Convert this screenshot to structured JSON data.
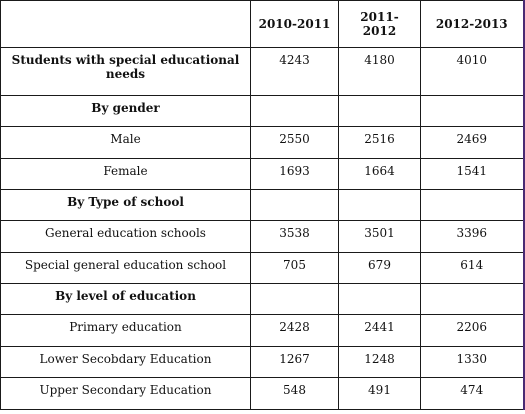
{
  "table": {
    "headers": [
      "",
      "2010-2011",
      "2011-2012",
      "2012-2013"
    ],
    "rows": [
      {
        "label": "Students with special educational needs",
        "values": [
          "4243",
          "4180",
          "4010"
        ],
        "bold": true
      },
      {
        "label": "By gender",
        "values": [
          "",
          "",
          ""
        ],
        "bold": true
      },
      {
        "label": "Male",
        "values": [
          "2550",
          "2516",
          "2469"
        ],
        "bold": false
      },
      {
        "label": "Female",
        "values": [
          "1693",
          "1664",
          "1541"
        ],
        "bold": false
      },
      {
        "label": "By Type of school",
        "values": [
          "",
          "",
          ""
        ],
        "bold": true
      },
      {
        "label": "General education schools",
        "values": [
          "3538",
          "3501",
          "3396"
        ],
        "bold": false
      },
      {
        "label": "Special general education school",
        "values": [
          "705",
          "679",
          "614"
        ],
        "bold": false
      },
      {
        "label": "By level of education",
        "values": [
          "",
          "",
          ""
        ],
        "bold": true
      },
      {
        "label": "Primary education",
        "values": [
          "2428",
          "2441",
          "2206"
        ],
        "bold": false
      },
      {
        "label": "Lower Secobdary Education",
        "values": [
          "1267",
          "1248",
          "1330"
        ],
        "bold": false
      },
      {
        "label": "Upper Secondary Education",
        "values": [
          "548",
          "491",
          "474"
        ],
        "bold": false
      }
    ]
  }
}
